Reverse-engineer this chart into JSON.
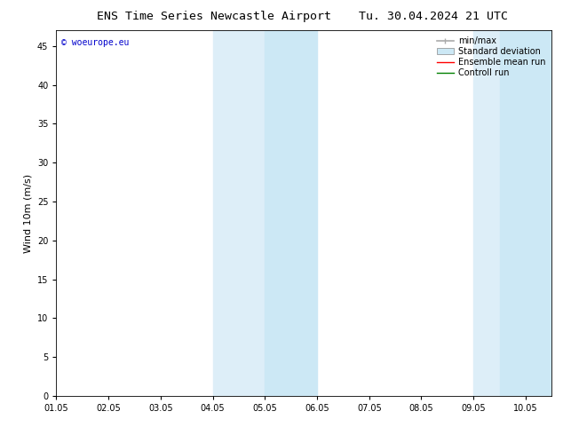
{
  "title_left": "ENS Time Series Newcastle Airport",
  "title_right": "Tu. 30.04.2024 21 UTC",
  "ylabel": "Wind 10m (m/s)",
  "xlim": [
    0,
    9.5
  ],
  "ylim": [
    0,
    47
  ],
  "yticks": [
    0,
    5,
    10,
    15,
    20,
    25,
    30,
    35,
    40,
    45
  ],
  "xtick_labels": [
    "01.05",
    "02.05",
    "03.05",
    "04.05",
    "05.05",
    "06.05",
    "07.05",
    "08.05",
    "09.05",
    "10.05"
  ],
  "xtick_positions": [
    0,
    1,
    2,
    3,
    4,
    5,
    6,
    7,
    8,
    9
  ],
  "shaded_regions": [
    {
      "xmin": 3.0,
      "xmax": 4.0,
      "color": "#ddeef8"
    },
    {
      "xmin": 4.0,
      "xmax": 5.0,
      "color": "#cce8f5"
    },
    {
      "xmin": 8.0,
      "xmax": 8.5,
      "color": "#ddeef8"
    },
    {
      "xmin": 8.5,
      "xmax": 9.5,
      "color": "#cce8f5"
    }
  ],
  "legend_entries": [
    {
      "label": "min/max",
      "color": "#aaaaaa",
      "type": "errorbar"
    },
    {
      "label": "Standard deviation",
      "color": "#cce8f5",
      "type": "fill"
    },
    {
      "label": "Ensemble mean run",
      "color": "red",
      "type": "line",
      "lw": 1.0
    },
    {
      "label": "Controll run",
      "color": "green",
      "type": "line",
      "lw": 1.0
    }
  ],
  "watermark_text": "© woeurope.eu",
  "watermark_color": "#0000cc",
  "background_color": "#ffffff",
  "title_fontsize": 9.5,
  "axis_fontsize": 8,
  "tick_fontsize": 7,
  "legend_fontsize": 7
}
